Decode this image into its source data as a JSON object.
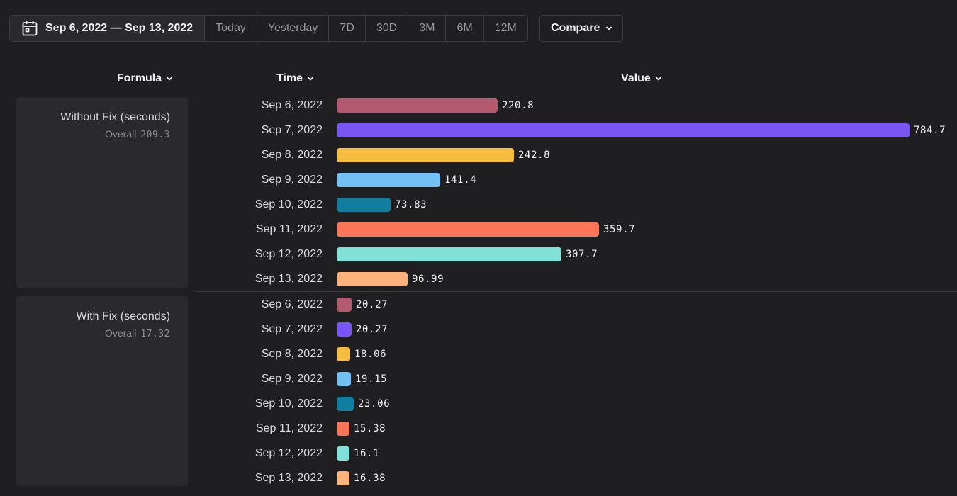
{
  "toolbar": {
    "date_range": "Sep 6, 2022 — Sep 13, 2022",
    "presets": [
      "Today",
      "Yesterday",
      "7D",
      "30D",
      "3M",
      "6M",
      "12M"
    ],
    "compare_label": "Compare",
    "calendar_icon": "calendar-icon",
    "chevron_icon": "chevron-down-icon"
  },
  "headers": {
    "formula": "Formula",
    "time": "Time",
    "value": "Value"
  },
  "colors": [
    "#b55a6e",
    "#7856f5",
    "#f6bd41",
    "#73c0f5",
    "#0f7ea0",
    "#fd7557",
    "#80e1d8",
    "#ffb27a"
  ],
  "chart_data": {
    "type": "bar",
    "orientation": "horizontal",
    "categories": [
      "Sep 6, 2022",
      "Sep 7, 2022",
      "Sep 8, 2022",
      "Sep 9, 2022",
      "Sep 10, 2022",
      "Sep 11, 2022",
      "Sep 12, 2022",
      "Sep 13, 2022"
    ],
    "groups": [
      {
        "name": "Without Fix (seconds)",
        "overall_label": "Overall",
        "overall": "209.3",
        "values": [
          220.8,
          784.7,
          242.8,
          141.4,
          73.83,
          359.7,
          307.7,
          96.99
        ],
        "value_labels": [
          "220.8",
          "784.7",
          "242.8",
          "141.4",
          "73.83",
          "359.7",
          "307.7",
          "96.99"
        ]
      },
      {
        "name": "With Fix (seconds)",
        "overall_label": "Overall",
        "overall": "17.32",
        "values": [
          20.27,
          20.27,
          18.06,
          19.15,
          23.06,
          15.38,
          16.1,
          16.38
        ],
        "value_labels": [
          "20.27",
          "20.27",
          "18.06",
          "19.15",
          "23.06",
          "15.38",
          "16.1",
          "16.38"
        ]
      }
    ],
    "xmax": 784.7,
    "legend": "none"
  }
}
